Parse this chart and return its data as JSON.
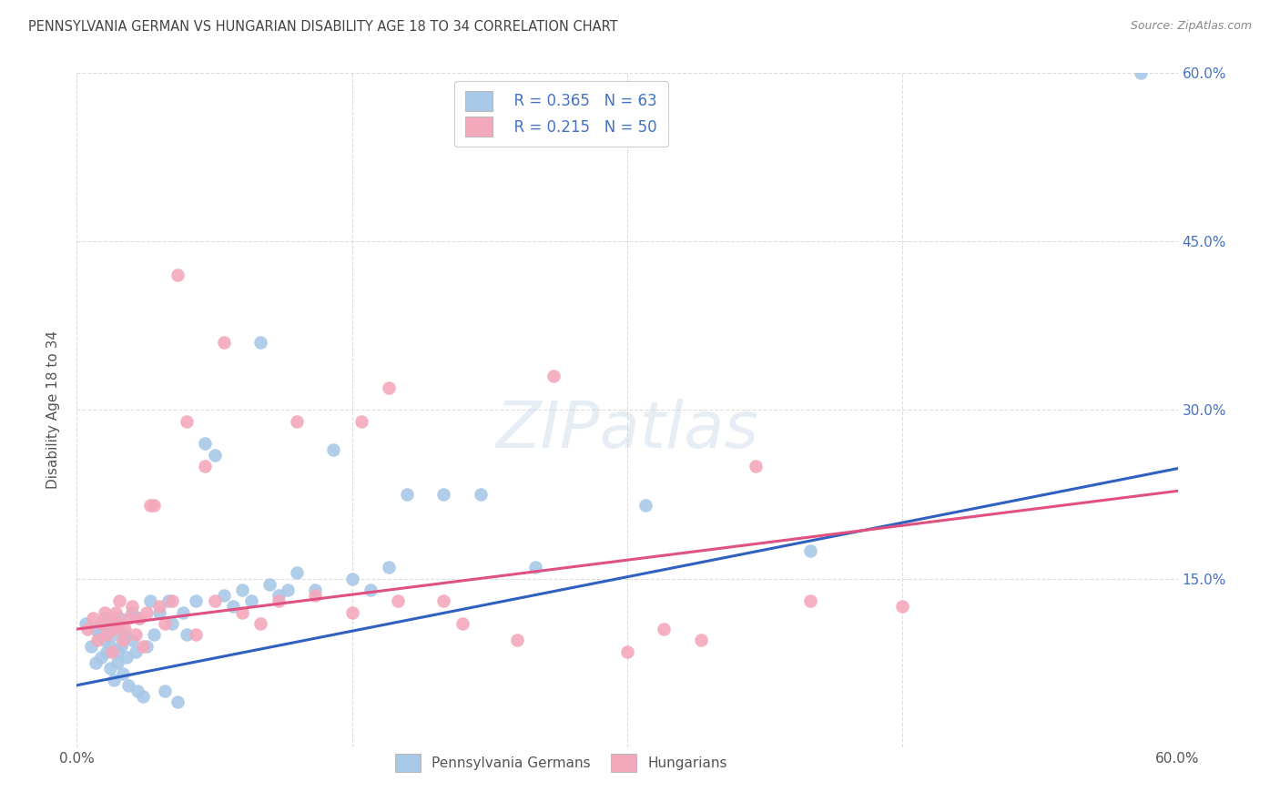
{
  "title": "PENNSYLVANIA GERMAN VS HUNGARIAN DISABILITY AGE 18 TO 34 CORRELATION CHART",
  "source": "Source: ZipAtlas.com",
  "ylabel": "Disability Age 18 to 34",
  "xlim": [
    0.0,
    0.6
  ],
  "ylim": [
    0.0,
    0.6
  ],
  "xtick_positions": [
    0.0,
    0.15,
    0.3,
    0.45,
    0.6
  ],
  "xtick_labels": [
    "0.0%",
    "",
    "",
    "",
    "60.0%"
  ],
  "ytick_positions": [
    0.0,
    0.15,
    0.3,
    0.45,
    0.6
  ],
  "ytick_labels_right": [
    "",
    "15.0%",
    "30.0%",
    "45.0%",
    "60.0%"
  ],
  "grid_color": "#dddddd",
  "background_color": "#ffffff",
  "title_color": "#444444",
  "watermark_text": "ZIPatlas",
  "legend_r1": "R = 0.365",
  "legend_n1": "N = 63",
  "legend_r2": "R = 0.215",
  "legend_n2": "N = 50",
  "blue_color": "#a8c8e8",
  "pink_color": "#f4a8bc",
  "line_blue": "#3060c0",
  "line_pink": "#e05080",
  "source_color": "#888888",
  "label1": "Pennsylvania Germans",
  "label2": "Hungarians",
  "blue_points_x": [
    0.005,
    0.008,
    0.01,
    0.01,
    0.012,
    0.013,
    0.015,
    0.015,
    0.016,
    0.017,
    0.018,
    0.018,
    0.02,
    0.02,
    0.021,
    0.022,
    0.022,
    0.023,
    0.024,
    0.025,
    0.026,
    0.027,
    0.028,
    0.03,
    0.03,
    0.032,
    0.033,
    0.034,
    0.036,
    0.038,
    0.04,
    0.042,
    0.045,
    0.048,
    0.05,
    0.052,
    0.055,
    0.058,
    0.06,
    0.065,
    0.07,
    0.075,
    0.08,
    0.085,
    0.09,
    0.095,
    0.1,
    0.105,
    0.11,
    0.115,
    0.12,
    0.13,
    0.14,
    0.15,
    0.16,
    0.17,
    0.18,
    0.2,
    0.22,
    0.25,
    0.31,
    0.4,
    0.58
  ],
  "blue_points_y": [
    0.11,
    0.09,
    0.105,
    0.075,
    0.1,
    0.08,
    0.115,
    0.095,
    0.085,
    0.105,
    0.07,
    0.09,
    0.11,
    0.06,
    0.1,
    0.085,
    0.075,
    0.115,
    0.09,
    0.065,
    0.1,
    0.08,
    0.055,
    0.12,
    0.095,
    0.085,
    0.05,
    0.115,
    0.045,
    0.09,
    0.13,
    0.1,
    0.12,
    0.05,
    0.13,
    0.11,
    0.04,
    0.12,
    0.1,
    0.13,
    0.27,
    0.26,
    0.135,
    0.125,
    0.14,
    0.13,
    0.36,
    0.145,
    0.135,
    0.14,
    0.155,
    0.14,
    0.265,
    0.15,
    0.14,
    0.16,
    0.225,
    0.225,
    0.225,
    0.16,
    0.215,
    0.175,
    0.6
  ],
  "pink_points_x": [
    0.006,
    0.009,
    0.011,
    0.013,
    0.015,
    0.016,
    0.018,
    0.019,
    0.02,
    0.021,
    0.022,
    0.023,
    0.025,
    0.026,
    0.028,
    0.03,
    0.032,
    0.034,
    0.036,
    0.038,
    0.04,
    0.042,
    0.045,
    0.048,
    0.052,
    0.055,
    0.06,
    0.065,
    0.07,
    0.075,
    0.08,
    0.09,
    0.1,
    0.11,
    0.12,
    0.13,
    0.15,
    0.155,
    0.17,
    0.175,
    0.2,
    0.21,
    0.24,
    0.26,
    0.3,
    0.32,
    0.34,
    0.37,
    0.4,
    0.45
  ],
  "pink_points_y": [
    0.105,
    0.115,
    0.095,
    0.11,
    0.12,
    0.1,
    0.115,
    0.085,
    0.105,
    0.12,
    0.11,
    0.13,
    0.095,
    0.105,
    0.115,
    0.125,
    0.1,
    0.115,
    0.09,
    0.12,
    0.215,
    0.215,
    0.125,
    0.11,
    0.13,
    0.42,
    0.29,
    0.1,
    0.25,
    0.13,
    0.36,
    0.12,
    0.11,
    0.13,
    0.29,
    0.135,
    0.12,
    0.29,
    0.32,
    0.13,
    0.13,
    0.11,
    0.095,
    0.33,
    0.085,
    0.105,
    0.095,
    0.25,
    0.13,
    0.125
  ]
}
